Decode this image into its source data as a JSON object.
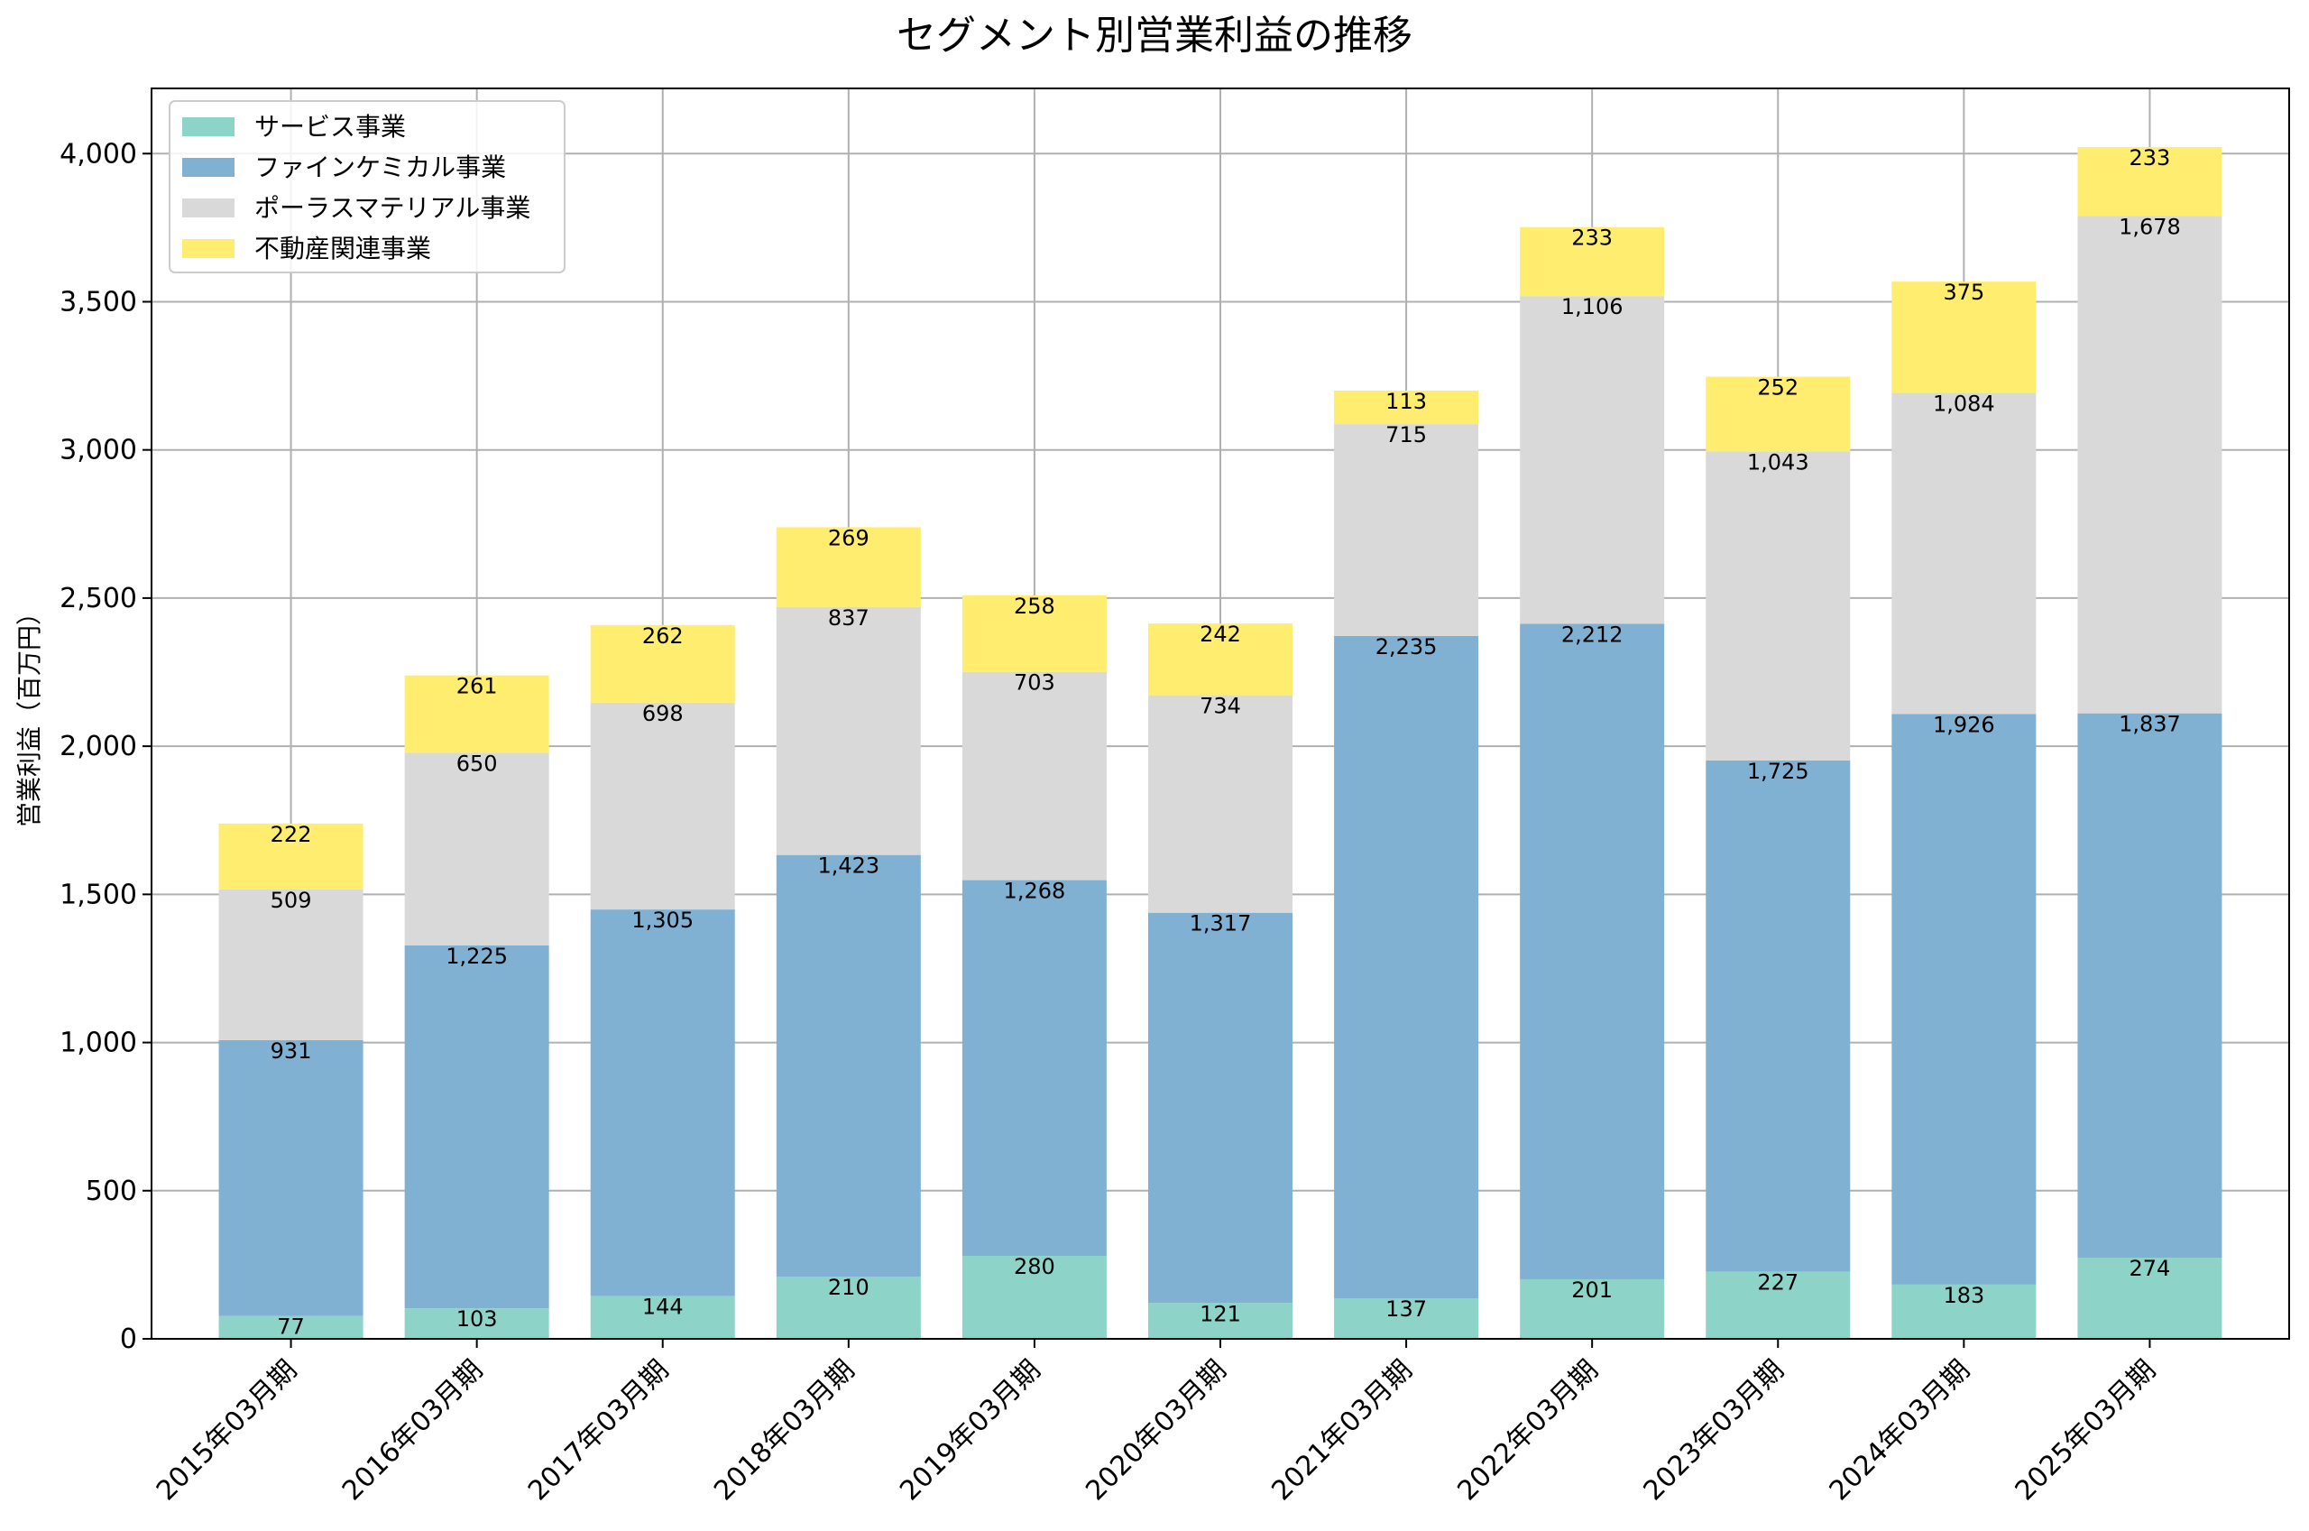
{
  "chart_data": {
    "type": "bar",
    "stacked": true,
    "title": "セグメント別営業利益の推移",
    "xlabel": "",
    "ylabel": "営業利益（百万円）",
    "ylim": [
      0,
      4220
    ],
    "yticks": [
      0,
      500,
      1000,
      1500,
      2000,
      2500,
      3000,
      3500,
      4000
    ],
    "ytick_labels": [
      "0",
      "500",
      "1,000",
      "1,500",
      "2,000",
      "2,500",
      "3,000",
      "3,500",
      "4,000"
    ],
    "grid": true,
    "legend_position": "top-left",
    "categories": [
      "2015年03月期",
      "2016年03月期",
      "2017年03月期",
      "2018年03月期",
      "2019年03月期",
      "2020年03月期",
      "2021年03月期",
      "2022年03月期",
      "2023年03月期",
      "2024年03月期",
      "2025年03月期"
    ],
    "series": [
      {
        "name": "サービス事業",
        "color": "#8dd3c7",
        "values": [
          77,
          103,
          144,
          210,
          280,
          121,
          137,
          201,
          227,
          183,
          274
        ],
        "labels": [
          "77",
          "103",
          "144",
          "210",
          "280",
          "121",
          "137",
          "201",
          "227",
          "183",
          "274"
        ]
      },
      {
        "name": "ファインケミカル事業",
        "color": "#80b1d3",
        "values": [
          931,
          1225,
          1305,
          1423,
          1268,
          1317,
          2235,
          2212,
          1725,
          1926,
          1837
        ],
        "labels": [
          "931",
          "1,225",
          "1,305",
          "1,423",
          "1,268",
          "1,317",
          "2,235",
          "2,212",
          "1,725",
          "1,926",
          "1,837"
        ]
      },
      {
        "name": "ポーラスマテリアル事業",
        "color": "#d9d9d9",
        "values": [
          509,
          650,
          698,
          837,
          703,
          734,
          715,
          1106,
          1043,
          1084,
          1678
        ],
        "labels": [
          "509",
          "650",
          "698",
          "837",
          "703",
          "734",
          "715",
          "1,106",
          "1,043",
          "1,084",
          "1,678"
        ]
      },
      {
        "name": "不動産関連事業",
        "color": "#ffed6f",
        "values": [
          222,
          261,
          262,
          269,
          258,
          242,
          113,
          233,
          252,
          375,
          233
        ],
        "labels": [
          "222",
          "261",
          "262",
          "269",
          "258",
          "242",
          "113",
          "233",
          "252",
          "375",
          "233"
        ]
      }
    ]
  }
}
